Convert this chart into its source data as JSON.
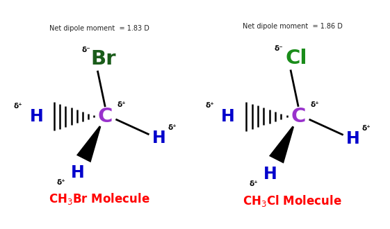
{
  "title_left": "Net dipole moment  = 1.83 D",
  "title_right": "Net dipole moment  = 1.86 D",
  "label_left": "CH$_3$Br Molecule",
  "label_right": "CH$_3$Cl Molecule",
  "halogen_left": "Br",
  "halogen_right": "Cl",
  "halogen_color_left": "#1a5c1a",
  "halogen_color_right": "#1a8c1a",
  "C_color": "#9932CC",
  "H_color": "#0000CC",
  "bond_color": "#000000",
  "label_color": "#FF0000",
  "title_color": "#222222",
  "delta_color": "#000000",
  "bg_color": "#ffffff",
  "figsize": [
    5.61,
    3.3
  ],
  "dpi": 100
}
